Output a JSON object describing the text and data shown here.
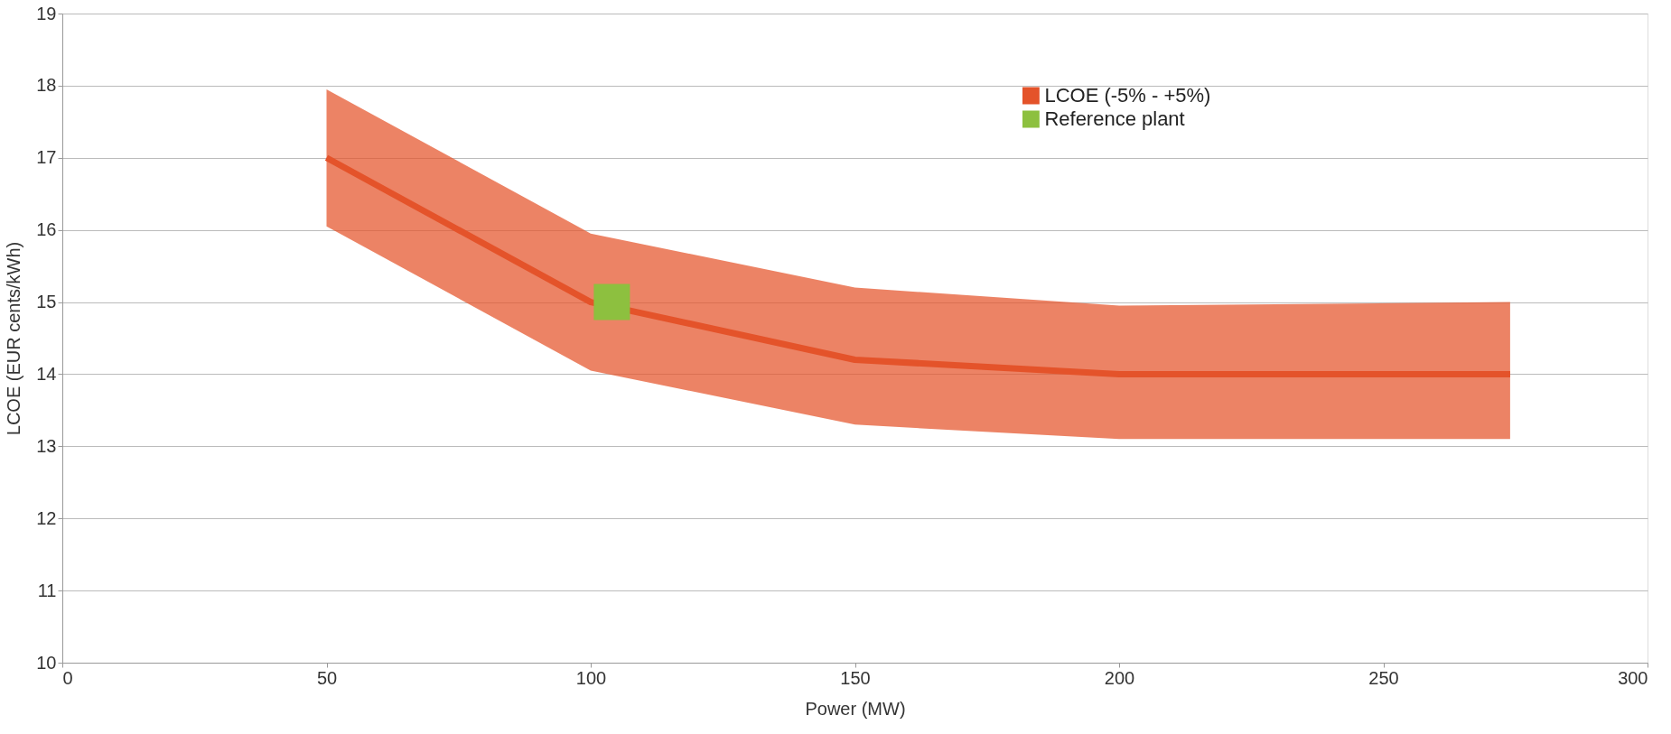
{
  "chart_data": {
    "type": "line",
    "xlabel": "Power (MW)",
    "ylabel": "LCOE (EUR cents/kWh)",
    "xlim": [
      0,
      300
    ],
    "xticks": [
      0,
      50,
      100,
      150,
      200,
      250,
      300
    ],
    "ylim": [
      10,
      19
    ],
    "yticks": [
      10,
      11,
      12,
      13,
      14,
      15,
      16,
      17,
      18,
      19
    ],
    "grid": "y",
    "legend": "top right",
    "line_style": "solid",
    "series": [
      {
        "name": "LCOE (-5% - +5%)",
        "color": "#e4532a",
        "x": [
          50,
          100,
          150,
          200,
          274
        ],
        "values": [
          17.0,
          15.0,
          14.2,
          14.0,
          14.0
        ],
        "lower": [
          16.05,
          14.05,
          13.3,
          13.1,
          13.1
        ],
        "upper": [
          17.95,
          15.95,
          15.2,
          14.95,
          15.0
        ]
      },
      {
        "name": "Reference plant",
        "type": "scatter",
        "marker": "square",
        "color": "#8dc03f",
        "x": [
          104
        ],
        "values": [
          15.0
        ]
      }
    ]
  }
}
